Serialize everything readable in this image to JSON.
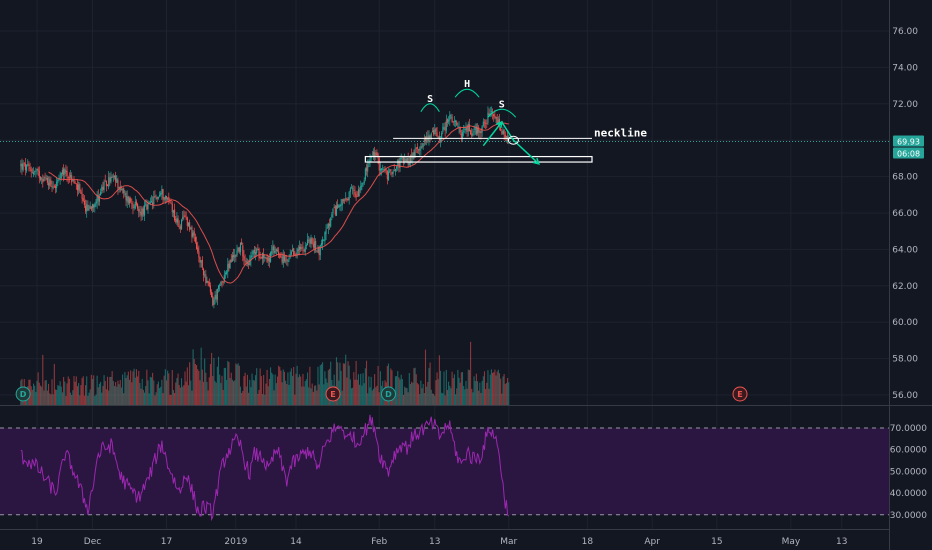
{
  "chart_data": [
    {
      "type": "candlestick",
      "title": "",
      "price_axis": {
        "ylim": [
          55.6,
          77.2
        ],
        "ticks": [
          "76.00",
          "74.00",
          "72.00",
          "70.00",
          "68.00",
          "66.00",
          "64.00",
          "62.00",
          "60.00",
          "58.00",
          "56.00"
        ]
      },
      "time_axis": {
        "ticks": [
          {
            "label": "19",
            "day": 0
          },
          {
            "label": "Dec",
            "day": 12
          },
          {
            "label": "17",
            "day": 28
          },
          {
            "label": "2019",
            "day": 43
          },
          {
            "label": "14",
            "day": 56
          },
          {
            "label": "Feb",
            "day": 74
          },
          {
            "label": "13",
            "day": 86
          },
          {
            "label": "Mar",
            "day": 102
          },
          {
            "label": "18",
            "day": 119
          },
          {
            "label": "Apr",
            "day": 133
          },
          {
            "label": "15",
            "day": 147
          },
          {
            "label": "May",
            "day": 163
          },
          {
            "label": "13",
            "day": 174
          }
        ],
        "xlim": [
          -3.5,
          184
        ]
      },
      "last_price": "69.93",
      "countdown": "06:08",
      "price_line_value": 69.93,
      "close_path": [
        [
          -3.5,
          68.6
        ],
        [
          0,
          68.2
        ],
        [
          2,
          67.8
        ],
        [
          4,
          67.5
        ],
        [
          6,
          68.3
        ],
        [
          7,
          68.0
        ],
        [
          9,
          67.3
        ],
        [
          10,
          66.4
        ],
        [
          11,
          66.2
        ],
        [
          13,
          66.8
        ],
        [
          14,
          67.3
        ],
        [
          16,
          67.9
        ],
        [
          17,
          67.8
        ],
        [
          19,
          66.9
        ],
        [
          21,
          66.5
        ],
        [
          22,
          66.0
        ],
        [
          24,
          66.3
        ],
        [
          26,
          66.9
        ],
        [
          27,
          67.1
        ],
        [
          29,
          66.5
        ],
        [
          30,
          65.6
        ],
        [
          31,
          65.3
        ],
        [
          32,
          65.8
        ],
        [
          33,
          65.3
        ],
        [
          34,
          64.5
        ],
        [
          35,
          63.5
        ],
        [
          36,
          62.8
        ],
        [
          37,
          62.0
        ],
        [
          38,
          61.1
        ],
        [
          39,
          61.6
        ],
        [
          40,
          62.3
        ],
        [
          41,
          62.8
        ],
        [
          42,
          63.4
        ],
        [
          43,
          63.8
        ],
        [
          44,
          64.2
        ],
        [
          45,
          63.5
        ],
        [
          46,
          63.3
        ],
        [
          47,
          63.9
        ],
        [
          49,
          63.7
        ],
        [
          50,
          63.4
        ],
        [
          51,
          63.9
        ],
        [
          52,
          64.0
        ],
        [
          53,
          63.5
        ],
        [
          54,
          63.2
        ],
        [
          55,
          63.7
        ],
        [
          57,
          64.0
        ],
        [
          59,
          64.5
        ],
        [
          60,
          64.2
        ],
        [
          61,
          63.9
        ],
        [
          62,
          64.7
        ],
        [
          63,
          65.2
        ],
        [
          64,
          66.0
        ],
        [
          65,
          66.3
        ],
        [
          66,
          66.8
        ],
        [
          67,
          66.5
        ],
        [
          68,
          67.3
        ],
        [
          69,
          67.0
        ],
        [
          70,
          67.6
        ],
        [
          71,
          68.2
        ],
        [
          72,
          68.9
        ],
        [
          73,
          69.3
        ],
        [
          74,
          68.6
        ],
        [
          75,
          68.3
        ],
        [
          76,
          68.0
        ],
        [
          77,
          68.5
        ],
        [
          78,
          68.7
        ],
        [
          79,
          68.9
        ],
        [
          80,
          68.8
        ],
        [
          81,
          69.1
        ],
        [
          82,
          69.4
        ],
        [
          83,
          69.8
        ],
        [
          84,
          70.0
        ],
        [
          85,
          70.3
        ],
        [
          86,
          70.4
        ],
        [
          87,
          70.2
        ],
        [
          88,
          70.6
        ],
        [
          89,
          71.3
        ],
        [
          90,
          71.0
        ],
        [
          91,
          70.6
        ],
        [
          92,
          70.3
        ],
        [
          93,
          70.7
        ],
        [
          94,
          70.5
        ],
        [
          96,
          70.6
        ],
        [
          97,
          71.1
        ],
        [
          98,
          71.4
        ],
        [
          99,
          71.2
        ],
        [
          100,
          70.8
        ],
        [
          101,
          70.1
        ],
        [
          102,
          69.9
        ]
      ],
      "volume_ylim": [
        0,
        1.0
      ],
      "volume_shape": [
        [
          -3.5,
          0.45
        ],
        [
          15,
          0.48
        ],
        [
          30,
          0.55
        ],
        [
          35,
          0.85
        ],
        [
          45,
          0.55
        ],
        [
          60,
          0.55
        ],
        [
          65,
          0.75
        ],
        [
          75,
          0.55
        ],
        [
          90,
          0.5
        ],
        [
          102,
          0.5
        ]
      ],
      "event_badges": [
        {
          "label": "D",
          "day": -3,
          "kind": "dividend"
        },
        {
          "label": "E",
          "day": 64,
          "kind": "earnings"
        },
        {
          "label": "D",
          "day": 76,
          "kind": "dividend"
        },
        {
          "label": "E",
          "day": 152,
          "kind": "earnings"
        }
      ],
      "annotations": {
        "left_shoulder": {
          "label": "S",
          "day": 85.0,
          "price": 72.0
        },
        "head": {
          "label": "H",
          "day": 93.0,
          "price": 72.8
        },
        "right_shoulder": {
          "label": "S",
          "day": 100.5,
          "price": 71.7
        },
        "neckline": {
          "label": "neckline",
          "day_start": 77,
          "day_end": 120,
          "price": 70.1
        },
        "target_box": {
          "day_start": 71,
          "day_end": 120,
          "price_top": 69.1,
          "price_bottom": 68.8
        },
        "projection": [
          [
            96.5,
            69.7
          ],
          [
            100.5,
            71.0
          ],
          [
            103,
            70.0
          ],
          [
            108.5,
            68.7
          ]
        ]
      },
      "accent_colors": {
        "up": "#26a69a",
        "down": "#ef5350",
        "price_line": "#26a69a",
        "rsi": "#9c27b0",
        "annotation": "#00d7a0"
      }
    },
    {
      "type": "line",
      "title": "",
      "indicator": "RSI",
      "ylim": [
        27.0,
        79.0
      ],
      "ticks": [
        "70.0000",
        "60.0000",
        "50.0000",
        "40.0000",
        "30.0000"
      ],
      "upper_band": 70,
      "lower_band": 30,
      "rsi_path": [
        [
          -3.5,
          57
        ],
        [
          0,
          52
        ],
        [
          2,
          46
        ],
        [
          4,
          40
        ],
        [
          5,
          48
        ],
        [
          6,
          58
        ],
        [
          7,
          55
        ],
        [
          9,
          44
        ],
        [
          10,
          38
        ],
        [
          11,
          33
        ],
        [
          12,
          42
        ],
        [
          13,
          56
        ],
        [
          14,
          60
        ],
        [
          16,
          62
        ],
        [
          17,
          56
        ],
        [
          18,
          48
        ],
        [
          20,
          42
        ],
        [
          22,
          38
        ],
        [
          24,
          46
        ],
        [
          26,
          58
        ],
        [
          27,
          63
        ],
        [
          28,
          55
        ],
        [
          30,
          44
        ],
        [
          31,
          40
        ],
        [
          32,
          50
        ],
        [
          33,
          44
        ],
        [
          34,
          38
        ],
        [
          35,
          30
        ],
        [
          36,
          34
        ],
        [
          38,
          31
        ],
        [
          39,
          42
        ],
        [
          40,
          52
        ],
        [
          41,
          58
        ],
        [
          42,
          61
        ],
        [
          43,
          64
        ],
        [
          44,
          62
        ],
        [
          45,
          54
        ],
        [
          46,
          49
        ],
        [
          47,
          58
        ],
        [
          49,
          56
        ],
        [
          50,
          50
        ],
        [
          51,
          56
        ],
        [
          52,
          60
        ],
        [
          53,
          52
        ],
        [
          54,
          46
        ],
        [
          55,
          53
        ],
        [
          57,
          57
        ],
        [
          59,
          60
        ],
        [
          60,
          55
        ],
        [
          61,
          51
        ],
        [
          62,
          61
        ],
        [
          63,
          64
        ],
        [
          64,
          69
        ],
        [
          65,
          70
        ],
        [
          66,
          71
        ],
        [
          67,
          64
        ],
        [
          68,
          68
        ],
        [
          69,
          62
        ],
        [
          70,
          66
        ],
        [
          71,
          69
        ],
        [
          72,
          73
        ],
        [
          73,
          71
        ],
        [
          74,
          58
        ],
        [
          75,
          54
        ],
        [
          76,
          50
        ],
        [
          77,
          57
        ],
        [
          78,
          60
        ],
        [
          79,
          63
        ],
        [
          80,
          61
        ],
        [
          81,
          65
        ],
        [
          82,
          67
        ],
        [
          83,
          69
        ],
        [
          84,
          70
        ],
        [
          85,
          72
        ],
        [
          86,
          71
        ],
        [
          87,
          66
        ],
        [
          88,
          69
        ],
        [
          89,
          72
        ],
        [
          90,
          64
        ],
        [
          91,
          56
        ],
        [
          92,
          53
        ],
        [
          93,
          60
        ],
        [
          94,
          56
        ],
        [
          96,
          57
        ],
        [
          97,
          65
        ],
        [
          98,
          70
        ],
        [
          99,
          66
        ],
        [
          100,
          58
        ],
        [
          101,
          38
        ],
        [
          102,
          31
        ]
      ]
    }
  ]
}
